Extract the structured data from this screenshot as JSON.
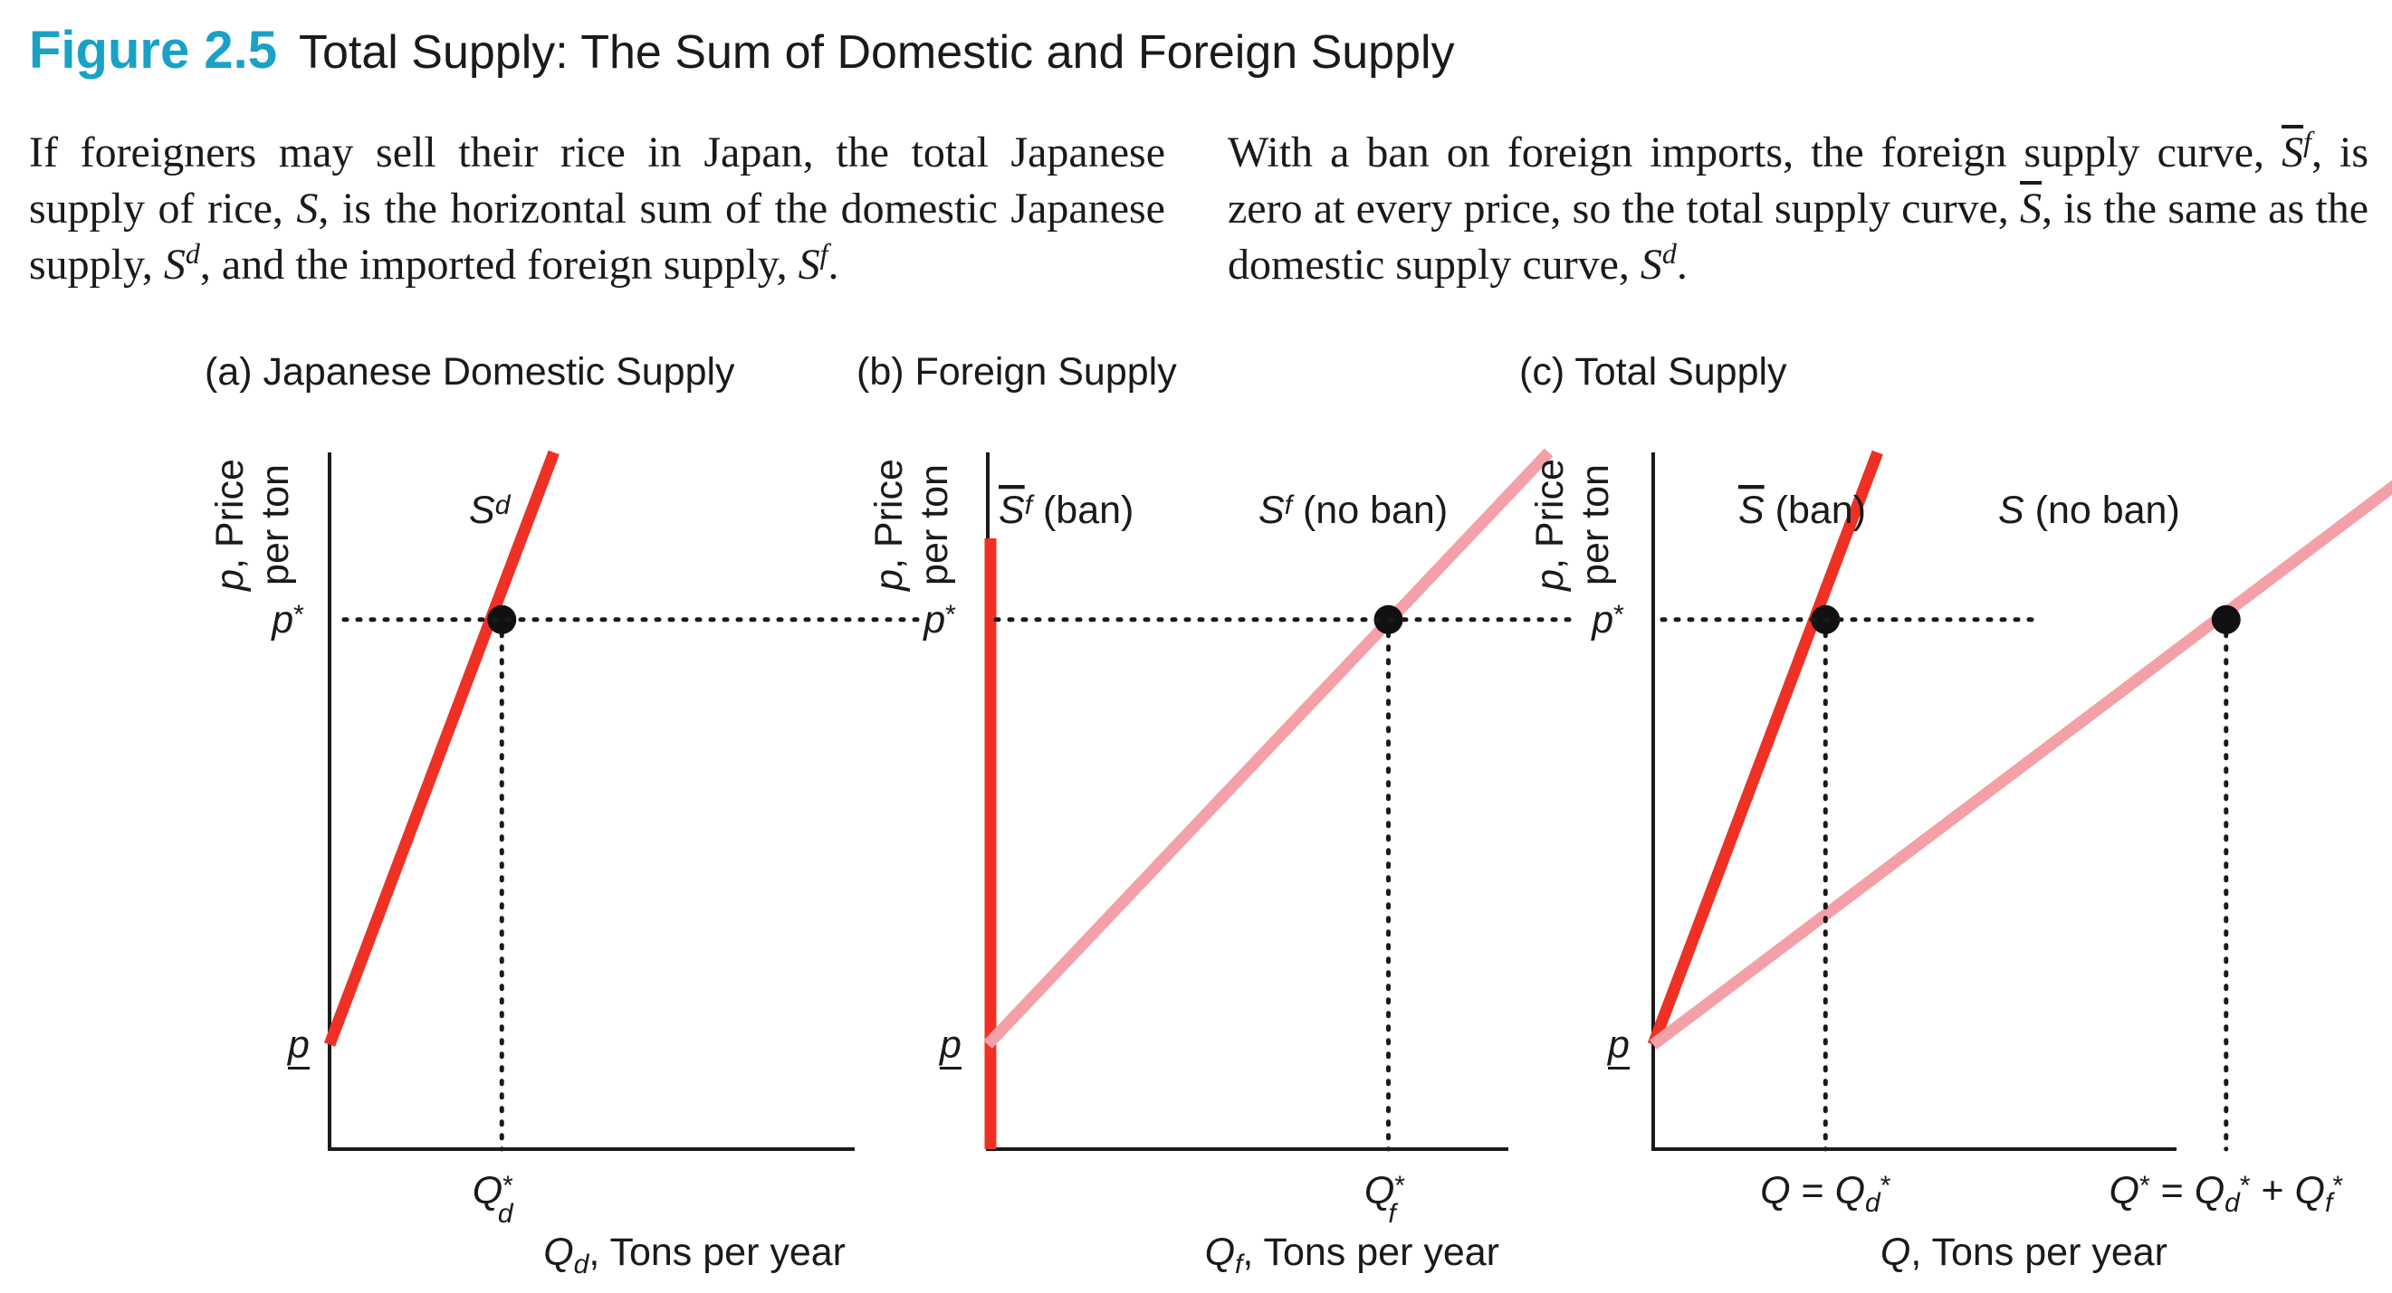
{
  "figure": {
    "number": "Figure 2.5",
    "title": "Total Supply: The Sum of Domestic and Foreign Supply"
  },
  "caption_left": {
    "t1": "If foreigners may sell their rice in Japan, the total Japanese supply of rice, ",
    "s": "S",
    "t2": ", is the horizontal sum of the domestic Japanese supply, ",
    "sd_base": "S",
    "sd_sup": "d",
    "t3": ", and the imported foreign supply, ",
    "sf_base": "S",
    "sf_sup": "f",
    "t4": "."
  },
  "caption_right": {
    "t1": "With a ban on foreign imports, the foreign supply curve, ",
    "sfbar_base": "S",
    "sfbar_sup": "f",
    "t2": ", is zero at every price, so the total supply curve, ",
    "sbar": "S",
    "t3": ", is the same as the domestic supply curve, ",
    "sd_base": "S",
    "sd_sup": "d",
    "t4": "."
  },
  "colors": {
    "accent": "#1aa1c6",
    "domestic_red": "#ee3124",
    "foreign_pink": "#f4a0a8",
    "axis": "#1a1a1a"
  },
  "chart_data": [
    {
      "type": "line",
      "title": "(a) Japanese Domestic Supply",
      "xlabel": "Qd, Tons per year",
      "ylabel": "p, Price per ton",
      "x_ticks": [
        "Qd*"
      ],
      "y_ticks": [
        "p",
        "p*"
      ],
      "xlim": [
        0,
        1
      ],
      "ylim": [
        0,
        1
      ],
      "series": [
        {
          "name": "Sd",
          "color": "#ee3124",
          "x": [
            0,
            0.28
          ],
          "y": [
            0.15,
            1.0
          ]
        }
      ],
      "equilibrium": {
        "x": 0.215,
        "y": 0.76,
        "label_x": "Qd*",
        "label_y": "p*"
      }
    },
    {
      "type": "line",
      "title": "(b) Foreign Supply",
      "xlabel": "Qf, Tons per year",
      "ylabel": "p, Price per ton",
      "x_ticks": [
        "Qf*"
      ],
      "y_ticks": [
        "p",
        "p*"
      ],
      "xlim": [
        0,
        1
      ],
      "ylim": [
        0,
        1
      ],
      "series": [
        {
          "name": "S̄f (ban)",
          "color": "#ee3124",
          "x": [
            0,
            0
          ],
          "y": [
            0,
            1.0
          ]
        },
        {
          "name": "Sf (no ban)",
          "color": "#f4a0a8",
          "x": [
            0,
            0.7
          ],
          "y": [
            0.15,
            1.0
          ]
        }
      ],
      "equilibrium": {
        "x": 0.5,
        "y": 0.76,
        "label_x": "Qf*",
        "label_y": "p*"
      }
    },
    {
      "type": "line",
      "title": "(c) Total Supply",
      "xlabel": "Q, Tons per year",
      "ylabel": "p, Price per ton",
      "x_ticks": [
        "Q = Qd*",
        "Q* = Qd* + Qf*"
      ],
      "y_ticks": [
        "p",
        "p*"
      ],
      "xlim": [
        0,
        1
      ],
      "ylim": [
        0,
        1
      ],
      "series": [
        {
          "name": "S̄ (ban)",
          "color": "#ee3124",
          "x": [
            0,
            0.28
          ],
          "y": [
            0.15,
            1.0
          ]
        },
        {
          "name": "S (no ban)",
          "color": "#f4a0a8",
          "x": [
            0,
            0.98
          ],
          "y": [
            0.15,
            1.0
          ]
        }
      ],
      "equilibria": [
        {
          "x": 0.215,
          "y": 0.76,
          "label_x": "Q = Qd*"
        },
        {
          "x": 0.715,
          "y": 0.76,
          "label_x": "Q* = Qd* + Qf*"
        }
      ]
    }
  ]
}
